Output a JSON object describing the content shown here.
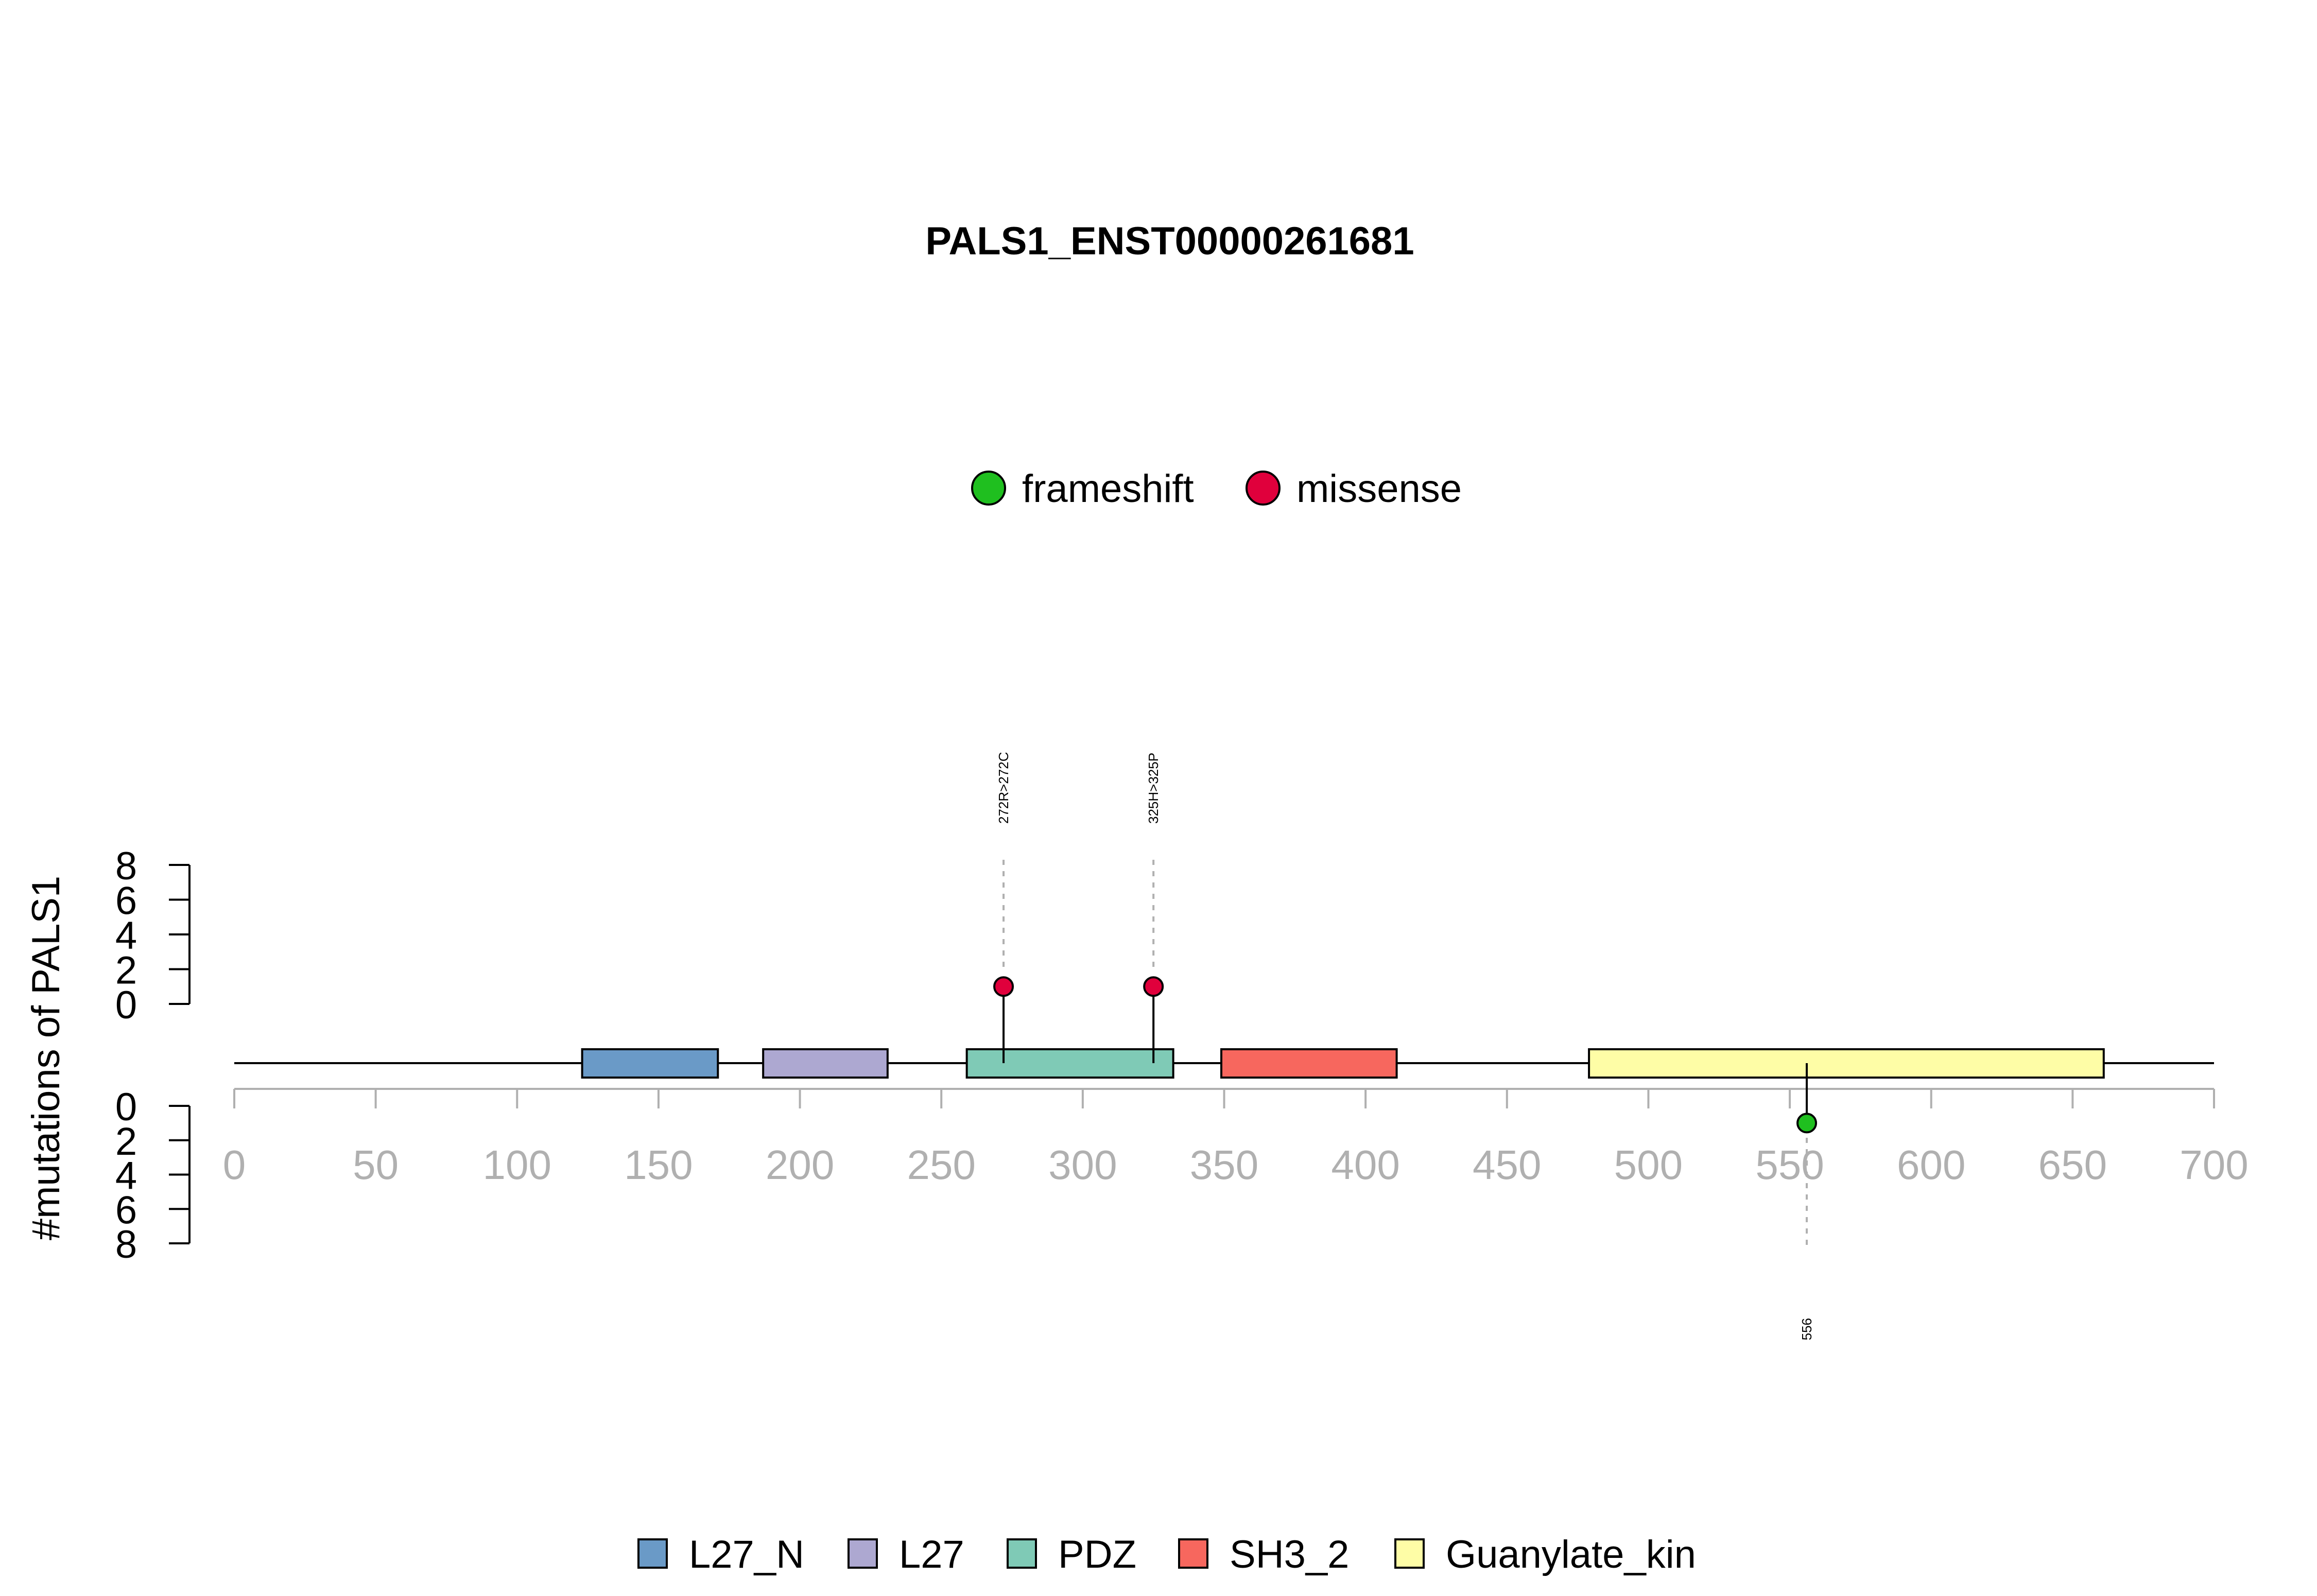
{
  "chart_data": {
    "type": "lollipop",
    "title": "PALS1_ENST00000261681",
    "ylabel": "#mutations of PALS1",
    "xlim": [
      0,
      700
    ],
    "x_ticks": [
      0,
      50,
      100,
      150,
      200,
      250,
      300,
      350,
      400,
      450,
      500,
      550,
      600,
      650,
      700
    ],
    "y_ticks_top": [
      0,
      2,
      4,
      6,
      8
    ],
    "y_ticks_bottom": [
      0,
      2,
      4,
      6,
      8
    ],
    "ylim_top": [
      0,
      8
    ],
    "ylim_bottom": [
      0,
      8
    ],
    "mutation_types": [
      {
        "name": "frameshift",
        "color": "#1fbf1f"
      },
      {
        "name": "missense",
        "color": "#e0003c"
      }
    ],
    "domains": [
      {
        "name": "L27_N",
        "start": 123,
        "end": 171,
        "color": "#6a9ac7"
      },
      {
        "name": "L27",
        "start": 187,
        "end": 231,
        "color": "#ada8d1"
      },
      {
        "name": "PDZ",
        "start": 259,
        "end": 332,
        "color": "#7fcab6"
      },
      {
        "name": "SH3_2",
        "start": 349,
        "end": 411,
        "color": "#f7675e"
      },
      {
        "name": "Guanylate_kin",
        "start": 479,
        "end": 661,
        "color": "#fefda6"
      }
    ],
    "mutations": [
      {
        "position": 272,
        "label": "272R>272C",
        "type": "missense",
        "count": 1,
        "side": "top"
      },
      {
        "position": 325,
        "label": "325H>325P",
        "type": "missense",
        "count": 1,
        "side": "top"
      },
      {
        "position": 556,
        "label": "556",
        "type": "frameshift",
        "count": 1,
        "side": "bottom"
      }
    ]
  }
}
